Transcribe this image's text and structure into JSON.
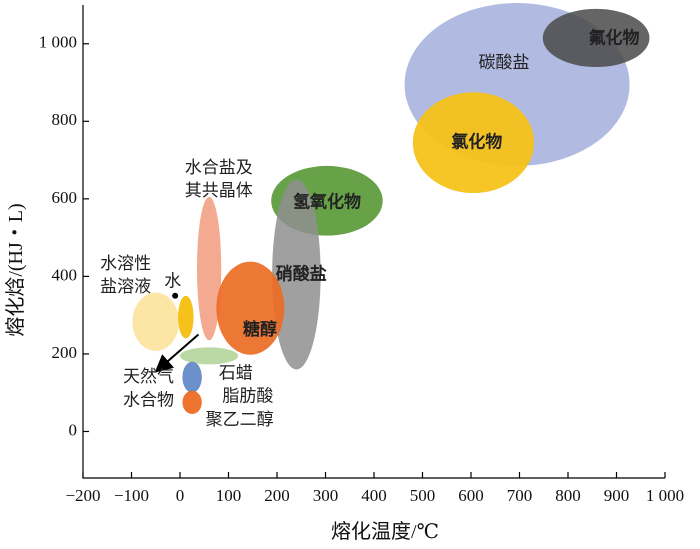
{
  "chart_data": {
    "type": "scatter",
    "xlabel": "熔化温度/℃",
    "ylabel": "熔化焓/(HJ・L)",
    "xlim": [
      -200,
      1000
    ],
    "ylim": [
      -120,
      1100
    ],
    "x_ticks": [
      -200,
      -100,
      0,
      100,
      200,
      300,
      400,
      500,
      600,
      700,
      800,
      900,
      1000
    ],
    "x_tick_labels": [
      "−200",
      "−100",
      "0",
      "100",
      "200",
      "300",
      "400",
      "500",
      "600",
      "700",
      "800",
      "900",
      "1 000"
    ],
    "y_ticks": [
      0,
      200,
      400,
      600,
      800,
      1000
    ],
    "y_tick_labels": [
      "0",
      "200",
      "400",
      "600",
      "800",
      "1 000"
    ],
    "regions": [
      {
        "name": "碳酸盐",
        "cx": 695,
        "cy": 895,
        "rx": 232,
        "ry": 210,
        "rotate": 0,
        "color": "#a9b3dd",
        "opacity": 0.9
      },
      {
        "name": "氟化物",
        "cx": 858,
        "cy": 1015,
        "rx": 110,
        "ry": 75,
        "rotate": 0,
        "color": "#4a4a4a",
        "opacity": 0.85
      },
      {
        "name": "氯化物",
        "cx": 605,
        "cy": 745,
        "rx": 125,
        "ry": 130,
        "rotate": 0,
        "color": "#f6c21a",
        "opacity": 0.95
      },
      {
        "name": "氢氧化物",
        "cx": 303,
        "cy": 595,
        "rx": 115,
        "ry": 90,
        "rotate": 0,
        "color": "#5a9a3a",
        "opacity": 0.92
      },
      {
        "name": "硝酸盐",
        "cx": 240,
        "cy": 405,
        "rx": 50,
        "ry": 245,
        "rotate": 0,
        "color": "#8f8f8f",
        "opacity": 0.85
      },
      {
        "name": "水合盐及其共晶体",
        "cx": 60,
        "cy": 420,
        "rx": 25,
        "ry": 185,
        "rotate": 0,
        "color": "#f29a7e",
        "opacity": 0.85
      },
      {
        "name": "糖醇",
        "cx": 145,
        "cy": 318,
        "rx": 70,
        "ry": 120,
        "rotate": 0,
        "color": "#ec6b24",
        "opacity": 0.92
      },
      {
        "name": "水溶性盐溶液",
        "cx": -50,
        "cy": 283,
        "rx": 48,
        "ry": 75,
        "rotate": 0,
        "color": "#fde4a0",
        "opacity": 0.95
      },
      {
        "name": "水",
        "cx": 12,
        "cy": 295,
        "rx": 16,
        "ry": 55,
        "rotate": 0,
        "color": "#f6c21a",
        "opacity": 1
      },
      {
        "name": "天然气水合物",
        "cx": 60,
        "cy": 195,
        "rx": 60,
        "ry": 22,
        "rotate": 0,
        "color": "#a9d08e",
        "opacity": 0.8
      },
      {
        "name": "石蜡",
        "cx": 25,
        "cy": 140,
        "rx": 20,
        "ry": 40,
        "rotate": 0,
        "color": "#5b84c4",
        "opacity": 0.9
      },
      {
        "name": "脂肪酸",
        "cx": 25,
        "cy": 75,
        "rx": 20,
        "ry": 30,
        "rotate": 0,
        "color": "#ec6b24",
        "opacity": 0.95
      }
    ],
    "labels": [
      {
        "text": "碳酸盐",
        "x": 668,
        "y": 950,
        "bold": false,
        "anchor": "middle"
      },
      {
        "text": "氟化物",
        "x": 895,
        "y": 1013,
        "bold": true,
        "anchor": "middle"
      },
      {
        "text": "氯化物",
        "x": 612,
        "y": 745,
        "bold": true,
        "anchor": "middle"
      },
      {
        "text": "氢氧化物",
        "x": 303,
        "y": 590,
        "bold": true,
        "anchor": "middle"
      },
      {
        "text": "硝酸盐",
        "x": 250,
        "y": 405,
        "bold": true,
        "anchor": "middle"
      },
      {
        "text": "水合盐及",
        "x": 80,
        "y": 680,
        "bold": false,
        "anchor": "middle"
      },
      {
        "text": "其共晶体",
        "x": 80,
        "y": 620,
        "bold": false,
        "anchor": "middle"
      },
      {
        "text": "糖醇",
        "x": 165,
        "y": 262,
        "bold": true,
        "anchor": "middle"
      },
      {
        "text": "水溶性",
        "x": -112,
        "y": 432,
        "bold": false,
        "anchor": "middle"
      },
      {
        "text": "盐溶液",
        "x": -112,
        "y": 372,
        "bold": false,
        "anchor": "middle"
      },
      {
        "text": "水",
        "x": -15,
        "y": 387,
        "bold": false,
        "anchor": "middle"
      },
      {
        "text": "天然气",
        "x": -65,
        "y": 140,
        "bold": false,
        "anchor": "middle"
      },
      {
        "text": "水合物",
        "x": -65,
        "y": 80,
        "bold": false,
        "anchor": "middle"
      },
      {
        "text": "石蜡",
        "x": 115,
        "y": 150,
        "bold": false,
        "anchor": "middle"
      },
      {
        "text": "脂肪酸",
        "x": 140,
        "y": 90,
        "bold": false,
        "anchor": "middle"
      },
      {
        "text": "聚乙二醇",
        "x": 123,
        "y": 30,
        "bold": false,
        "anchor": "middle"
      }
    ],
    "arrow": {
      "from": [
        38,
        250
      ],
      "to": [
        -40,
        165
      ]
    },
    "water_dot": {
      "x": -10,
      "y": 350
    }
  }
}
